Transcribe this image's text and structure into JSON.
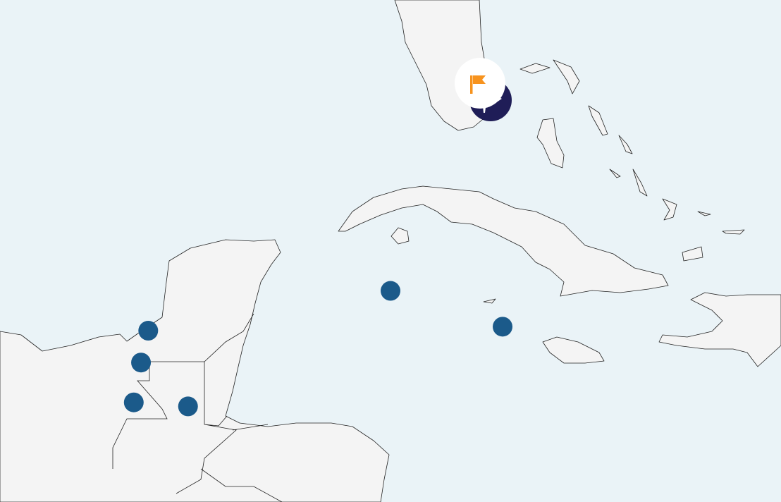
{
  "map": {
    "colors": {
      "water": "#eaf3f7",
      "land": "#f4f4f4",
      "marker": "#1b5a8a",
      "highlight_marker": "#1f1d57",
      "flag": "#f7931e"
    },
    "markers": [
      {
        "name": "marker-1",
        "lat": 18.3,
        "lon": -88.0
      },
      {
        "name": "marker-2",
        "lat": 17.5,
        "lon": -88.2
      },
      {
        "name": "marker-3",
        "lat": 16.5,
        "lon": -88.4
      },
      {
        "name": "marker-4",
        "lat": 16.4,
        "lon": -86.9
      },
      {
        "name": "marker-5",
        "lat": 19.3,
        "lon": -81.3
      },
      {
        "name": "marker-6",
        "lat": 18.4,
        "lon": -78.2
      }
    ],
    "highlight": {
      "icon": "flag-icon",
      "badge_icon": "maple-leaf-icon"
    }
  }
}
